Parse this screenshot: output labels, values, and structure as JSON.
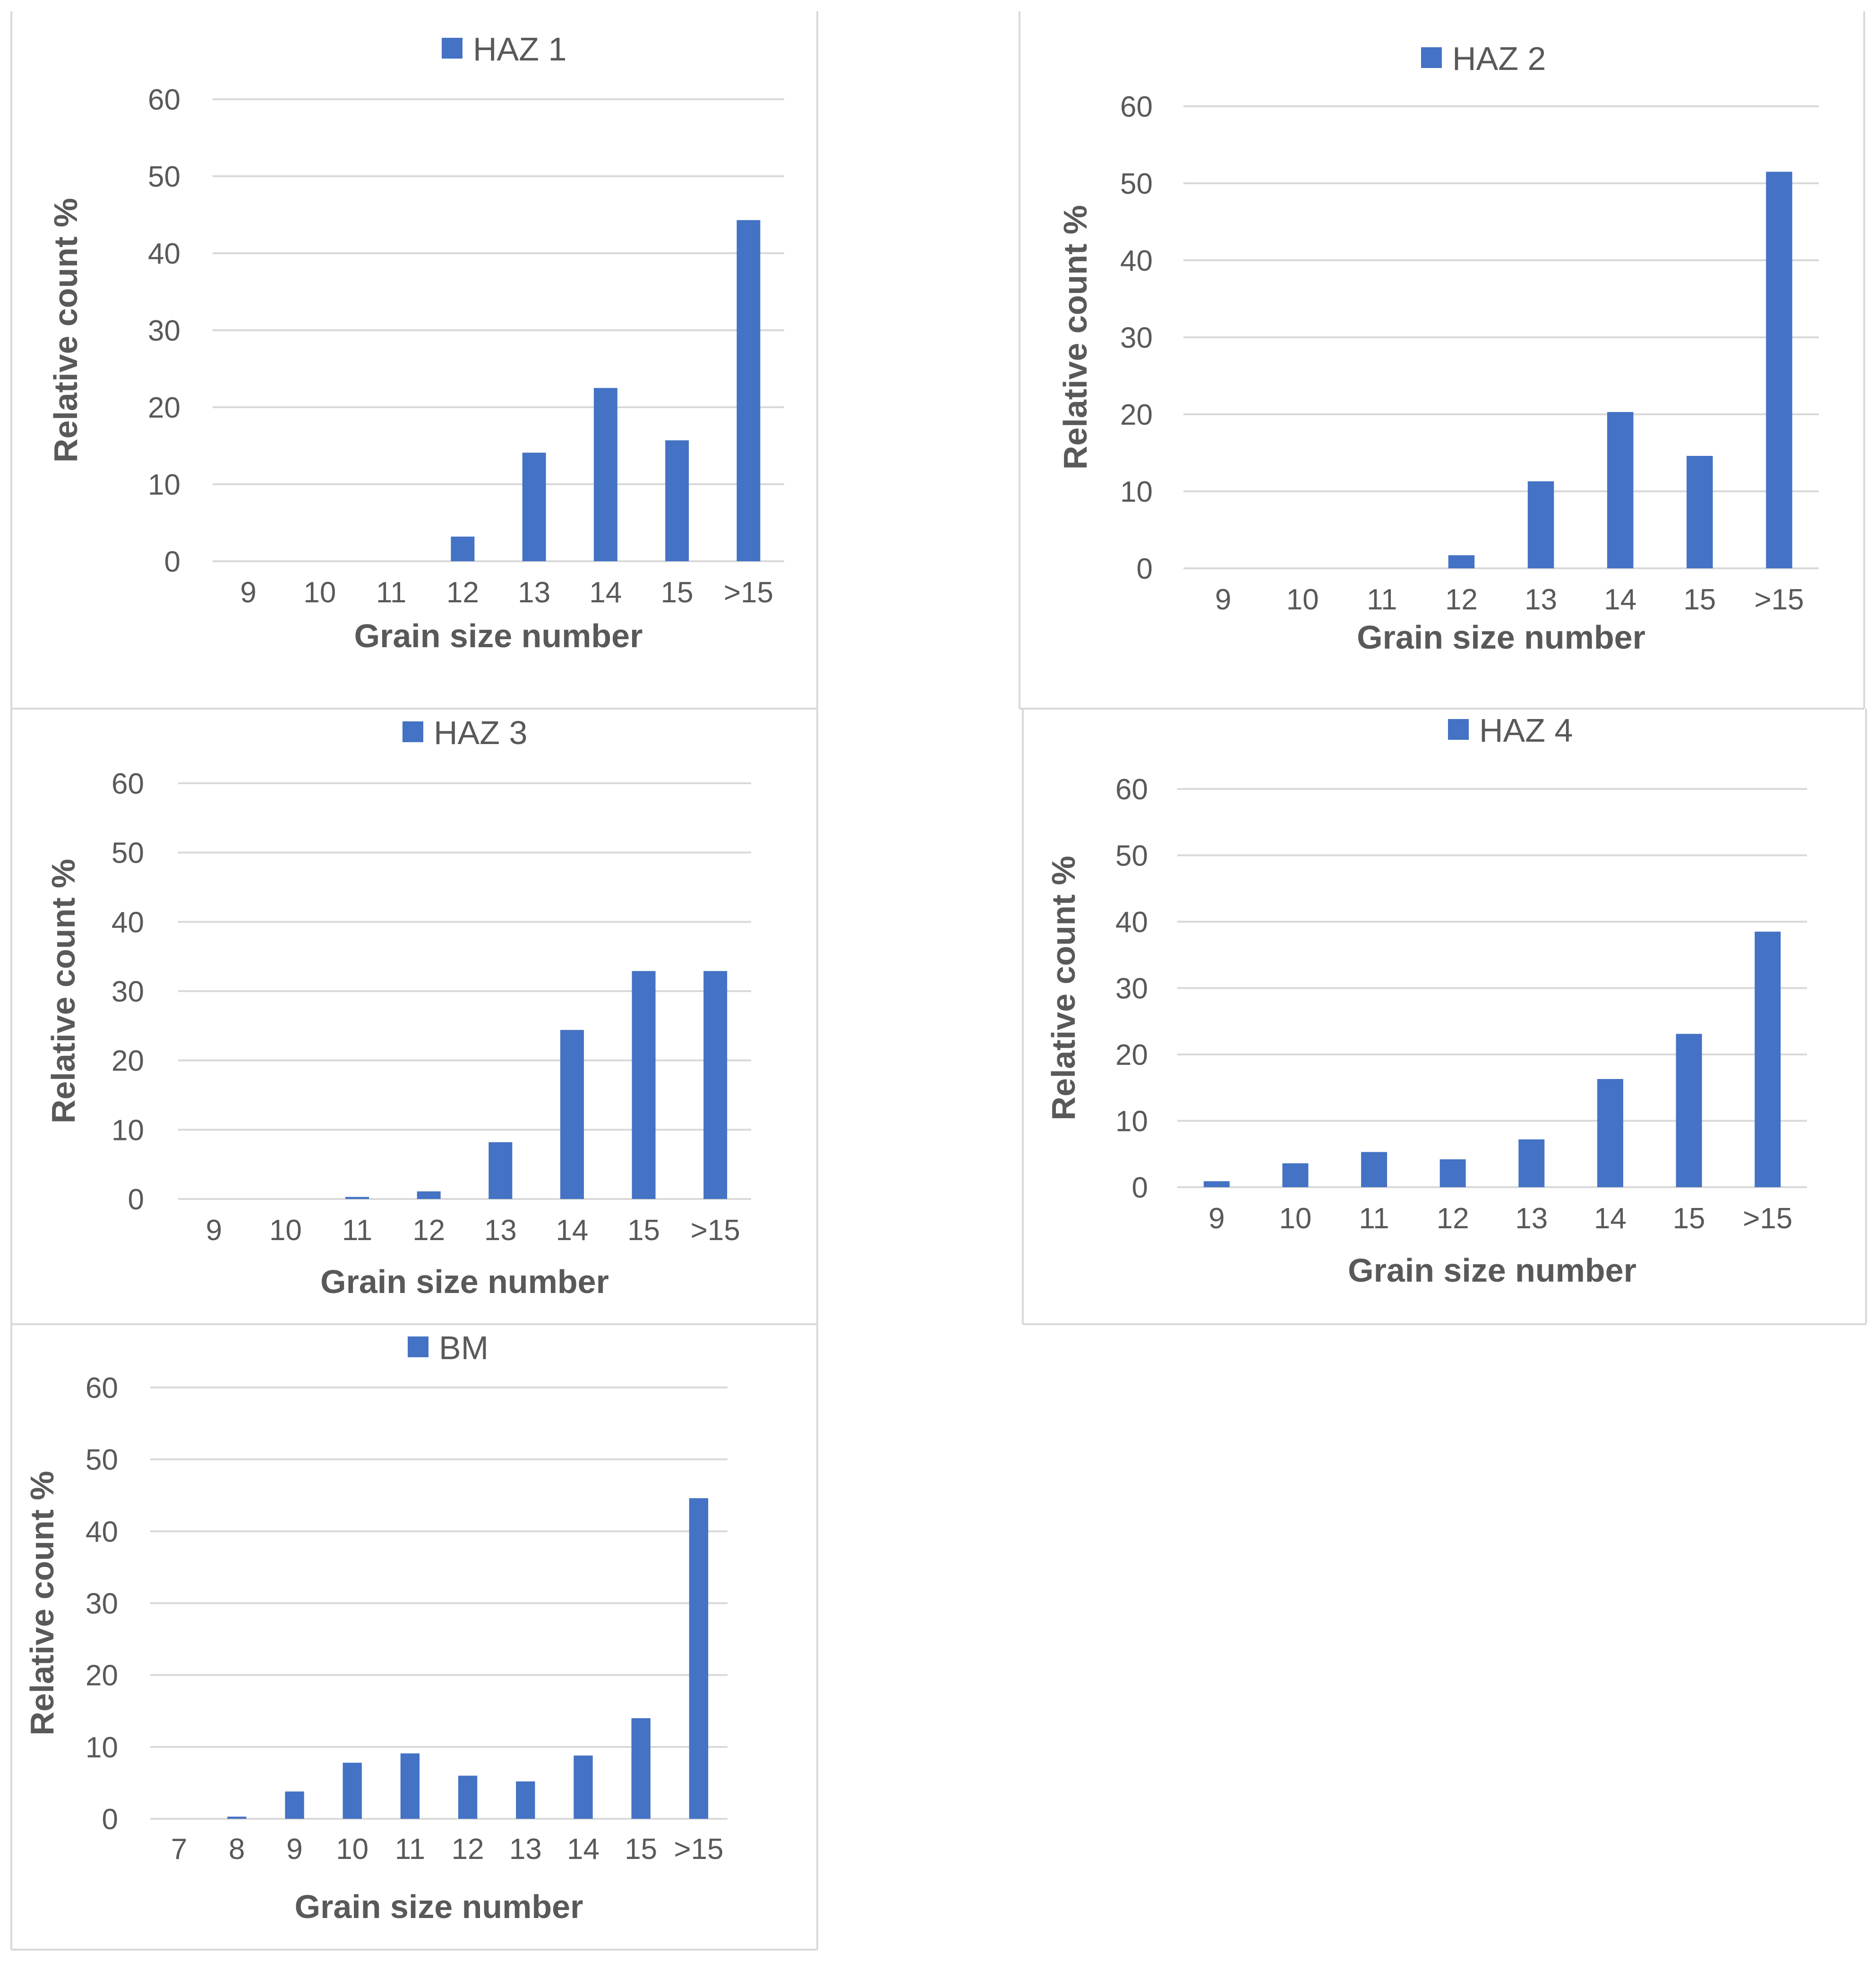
{
  "style": {
    "bar_color": "#4472C4",
    "grid_color": "#D9D9D9",
    "text_color": "#595959",
    "frame_color": "#D9D9D9"
  },
  "chart_data": [
    {
      "id": "haz1",
      "type": "bar",
      "legend": "HAZ 1",
      "categories": [
        "9",
        "10",
        "11",
        "12",
        "13",
        "14",
        "15",
        ">15"
      ],
      "values": [
        0,
        0,
        0,
        3.2,
        14.1,
        22.5,
        15.7,
        44.3
      ],
      "xlabel": "Grain size number",
      "ylabel": "Relative count %",
      "ylim": [
        0,
        60
      ],
      "yticks": [
        0,
        10,
        20,
        30,
        40,
        50,
        60
      ],
      "grid": true,
      "legend_position": "top"
    },
    {
      "id": "haz2",
      "type": "bar",
      "legend": "HAZ 2",
      "categories": [
        "9",
        "10",
        "11",
        "12",
        "13",
        "14",
        "15",
        ">15"
      ],
      "values": [
        0,
        0,
        0,
        1.7,
        11.3,
        20.3,
        14.6,
        51.5
      ],
      "xlabel": "Grain size number",
      "ylabel": "Relative count %",
      "ylim": [
        0,
        60
      ],
      "yticks": [
        0,
        10,
        20,
        30,
        40,
        50,
        60
      ],
      "grid": true,
      "legend_position": "top"
    },
    {
      "id": "haz3",
      "type": "bar",
      "legend": "HAZ 3",
      "categories": [
        "9",
        "10",
        "11",
        "12",
        "13",
        "14",
        "15",
        ">15"
      ],
      "values": [
        0,
        0,
        0.3,
        1.1,
        8.2,
        24.4,
        32.9,
        32.9
      ],
      "xlabel": "Grain size number",
      "ylabel": "Relative count %",
      "ylim": [
        0,
        60
      ],
      "yticks": [
        0,
        10,
        20,
        30,
        40,
        50,
        60
      ],
      "grid": true,
      "legend_position": "top"
    },
    {
      "id": "haz4",
      "type": "bar",
      "legend": "HAZ 4",
      "categories": [
        "9",
        "10",
        "11",
        "12",
        "13",
        "14",
        "15",
        ">15"
      ],
      "values": [
        0.9,
        3.6,
        5.3,
        4.2,
        7.2,
        16.3,
        23.1,
        38.5
      ],
      "xlabel": "Grain size number",
      "ylabel": "Relative count %",
      "ylim": [
        0,
        60
      ],
      "yticks": [
        0,
        10,
        20,
        30,
        40,
        50,
        60
      ],
      "grid": true,
      "legend_position": "top"
    },
    {
      "id": "bm",
      "type": "bar",
      "legend": "BM",
      "categories": [
        "7",
        "8",
        "9",
        "10",
        "11",
        "12",
        "13",
        "14",
        "15",
        ">15"
      ],
      "values": [
        0,
        0.3,
        3.8,
        7.8,
        9.1,
        6.0,
        5.2,
        8.8,
        14.0,
        44.6
      ],
      "xlabel": "Grain size number",
      "ylabel": "Relative count %",
      "ylim": [
        0,
        60
      ],
      "yticks": [
        0,
        10,
        20,
        30,
        40,
        50,
        60
      ],
      "grid": true,
      "legend_position": "top"
    }
  ]
}
